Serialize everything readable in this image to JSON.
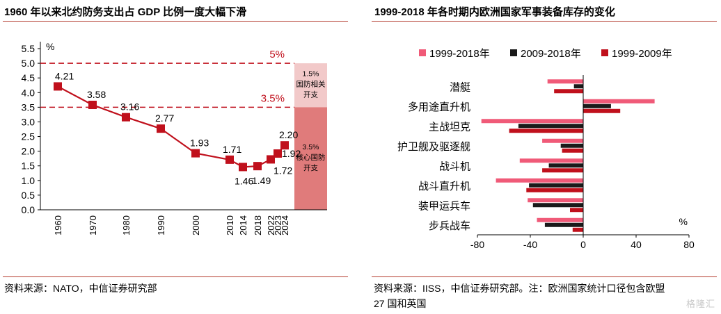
{
  "left": {
    "title": "1960 年以来北约防务支出占 GDP 比例一度大幅下滑",
    "source": "资料来源：NATO，中信证券研究部"
  },
  "right": {
    "title": "1999-2018 年各时期内欧洲国家军事装备库存的变化",
    "source_line1": "资料来源：IISS，中信证券研究部。注：欧洲国家统计口径包含欧盟",
    "source_line2": "27 国和英国"
  },
  "watermark": "格隆汇",
  "chart_data": [
    {
      "type": "line",
      "x": [
        "1960",
        "1970",
        "1980",
        "1990",
        "2000",
        "2010",
        "2014",
        "2018",
        "2022",
        "2023",
        "2024"
      ],
      "y": [
        4.21,
        3.58,
        3.16,
        2.77,
        1.93,
        1.71,
        1.46,
        1.49,
        1.72,
        1.92,
        2.2
      ],
      "data_labels": [
        "4.21",
        "3.58",
        "3.16",
        "2.77",
        "1.93",
        "1.71",
        "1.46",
        "1.49",
        "1.72",
        "1.92",
        "2.20"
      ],
      "ylim": [
        0,
        5.5
      ],
      "yticks": [
        "0.0",
        "0.5",
        "1.0",
        "1.5",
        "2.0",
        "2.5",
        "3.0",
        "3.5",
        "4.0",
        "4.5",
        "5.0",
        "5.5"
      ],
      "yunit": "%",
      "reference_lines": [
        {
          "value": 5.0,
          "label": "5%"
        },
        {
          "value": 3.5,
          "label": "3.5%"
        }
      ],
      "bands": [
        {
          "from": 3.5,
          "to": 5.0,
          "label": [
            "1.5%",
            "国防相关",
            "开支"
          ],
          "color": "#f2c9c9"
        },
        {
          "from": 0,
          "to": 3.5,
          "label": [
            "3.5%",
            "核心国防",
            "开支"
          ],
          "color": "#e07b7b"
        }
      ],
      "colors": {
        "line": "#c0101c",
        "ref": "#c0101c"
      }
    },
    {
      "type": "bar",
      "orientation": "horizontal",
      "categories": [
        "潜艇",
        "多用途直升机",
        "主战坦克",
        "护卫舰及驱逐舰",
        "战斗机",
        "战斗直升机",
        "装甲运兵车",
        "步兵战车"
      ],
      "series": [
        {
          "name": "1999-2018年",
          "color": "#f05a78",
          "values": [
            -27,
            54,
            -77,
            -31,
            -48,
            -66,
            -42,
            -35
          ]
        },
        {
          "name": "2009-2018年",
          "color": "#1a1a1a",
          "values": [
            -7,
            21,
            -49,
            -17,
            -26,
            -41,
            -38,
            -29
          ]
        },
        {
          "name": "1999-2009年",
          "color": "#c0101c",
          "values": [
            -22,
            28,
            -56,
            -16,
            -31,
            -43,
            -10,
            -8
          ]
        }
      ],
      "xlim": [
        -80,
        80
      ],
      "xticks": [
        "-80",
        "-40",
        "0",
        "40",
        "80"
      ],
      "xunit": "%",
      "legend": "top"
    }
  ]
}
